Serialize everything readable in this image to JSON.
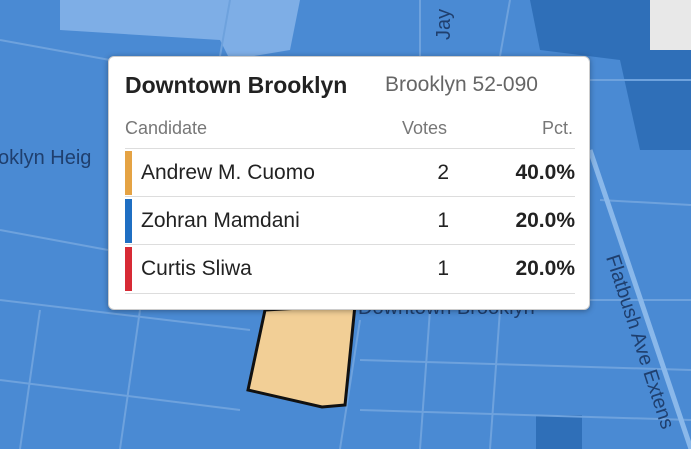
{
  "map": {
    "labels": {
      "street_top": "Jay",
      "neighborhood_left": "oklyn Heig",
      "neighborhood_center": "Downtown Brooklyn",
      "street_right": "Flatbush Ave Extens"
    }
  },
  "tooltip": {
    "title": "Downtown Brooklyn",
    "subtitle": "Brooklyn 52-090",
    "columns": [
      "Candidate",
      "Votes",
      "Pct."
    ],
    "rows": [
      {
        "candidate": "Andrew M. Cuomo",
        "votes": 2,
        "pct": "40.0%",
        "color": "#e5a344"
      },
      {
        "candidate": "Zohran Mamdani",
        "votes": 1,
        "pct": "20.0%",
        "color": "#1f6fc3"
      },
      {
        "candidate": "Curtis Sliwa",
        "votes": 1,
        "pct": "20.0%",
        "color": "#d72a35"
      }
    ]
  }
}
